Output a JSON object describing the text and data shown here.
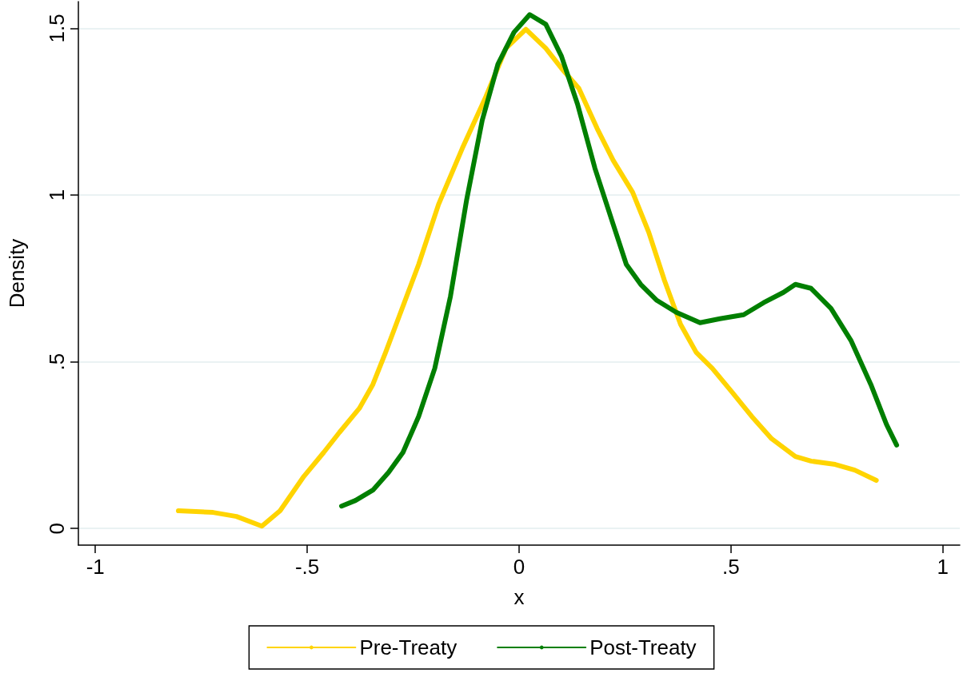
{
  "chart_data": {
    "type": "line",
    "xlabel": "x",
    "ylabel": "Density",
    "xlim": [
      -1.04,
      1.04
    ],
    "ylim": [
      -0.05,
      1.58
    ],
    "xticks": [
      {
        "value": -1,
        "label": "-1"
      },
      {
        "value": -0.5,
        "label": "-.5"
      },
      0,
      {
        "value": 0.5,
        "label": ".5"
      },
      1
    ],
    "yticks": [
      0,
      {
        "value": 0.5,
        "label": ".5"
      },
      1,
      {
        "value": 1.5,
        "label": "1.5"
      }
    ],
    "grid": "y",
    "legend": "bottom",
    "marker": "none",
    "line_style": "solid",
    "series": [
      {
        "name": "Pre-Treaty",
        "color": "#ffd400",
        "x": [
          -0.804,
          -0.722,
          -0.667,
          -0.607,
          -0.564,
          -0.508,
          -0.461,
          -0.424,
          -0.377,
          -0.345,
          -0.315,
          -0.283,
          -0.237,
          -0.19,
          -0.134,
          -0.078,
          -0.031,
          0.016,
          0.063,
          0.1,
          0.141,
          0.184,
          0.222,
          0.268,
          0.306,
          0.343,
          0.381,
          0.418,
          0.456,
          0.503,
          0.549,
          0.596,
          0.652,
          0.689,
          0.746,
          0.792,
          0.843
        ],
        "values": [
          0.053,
          0.048,
          0.036,
          0.007,
          0.053,
          0.156,
          0.228,
          0.288,
          0.36,
          0.432,
          0.528,
          0.636,
          0.792,
          0.972,
          1.14,
          1.296,
          1.44,
          1.497,
          1.44,
          1.38,
          1.32,
          1.2,
          1.104,
          1.008,
          0.888,
          0.744,
          0.612,
          0.528,
          0.48,
          0.408,
          0.336,
          0.269,
          0.216,
          0.202,
          0.192,
          0.175,
          0.144
        ]
      },
      {
        "name": "Post-Treaty",
        "color": "#007f00",
        "x": [
          -0.419,
          -0.386,
          -0.345,
          -0.308,
          -0.274,
          -0.237,
          -0.199,
          -0.162,
          -0.124,
          -0.087,
          -0.05,
          -0.012,
          0.025,
          0.063,
          0.1,
          0.138,
          0.179,
          0.222,
          0.253,
          0.287,
          0.325,
          0.371,
          0.427,
          0.474,
          0.53,
          0.577,
          0.624,
          0.652,
          0.689,
          0.736,
          0.783,
          0.83,
          0.867,
          0.891
        ],
        "values": [
          0.067,
          0.084,
          0.115,
          0.168,
          0.228,
          0.336,
          0.48,
          0.696,
          0.984,
          1.224,
          1.392,
          1.488,
          1.541,
          1.512,
          1.416,
          1.272,
          1.08,
          0.912,
          0.792,
          0.732,
          0.684,
          0.648,
          0.617,
          0.629,
          0.641,
          0.677,
          0.708,
          0.732,
          0.72,
          0.66,
          0.564,
          0.432,
          0.312,
          0.25
        ]
      }
    ]
  }
}
